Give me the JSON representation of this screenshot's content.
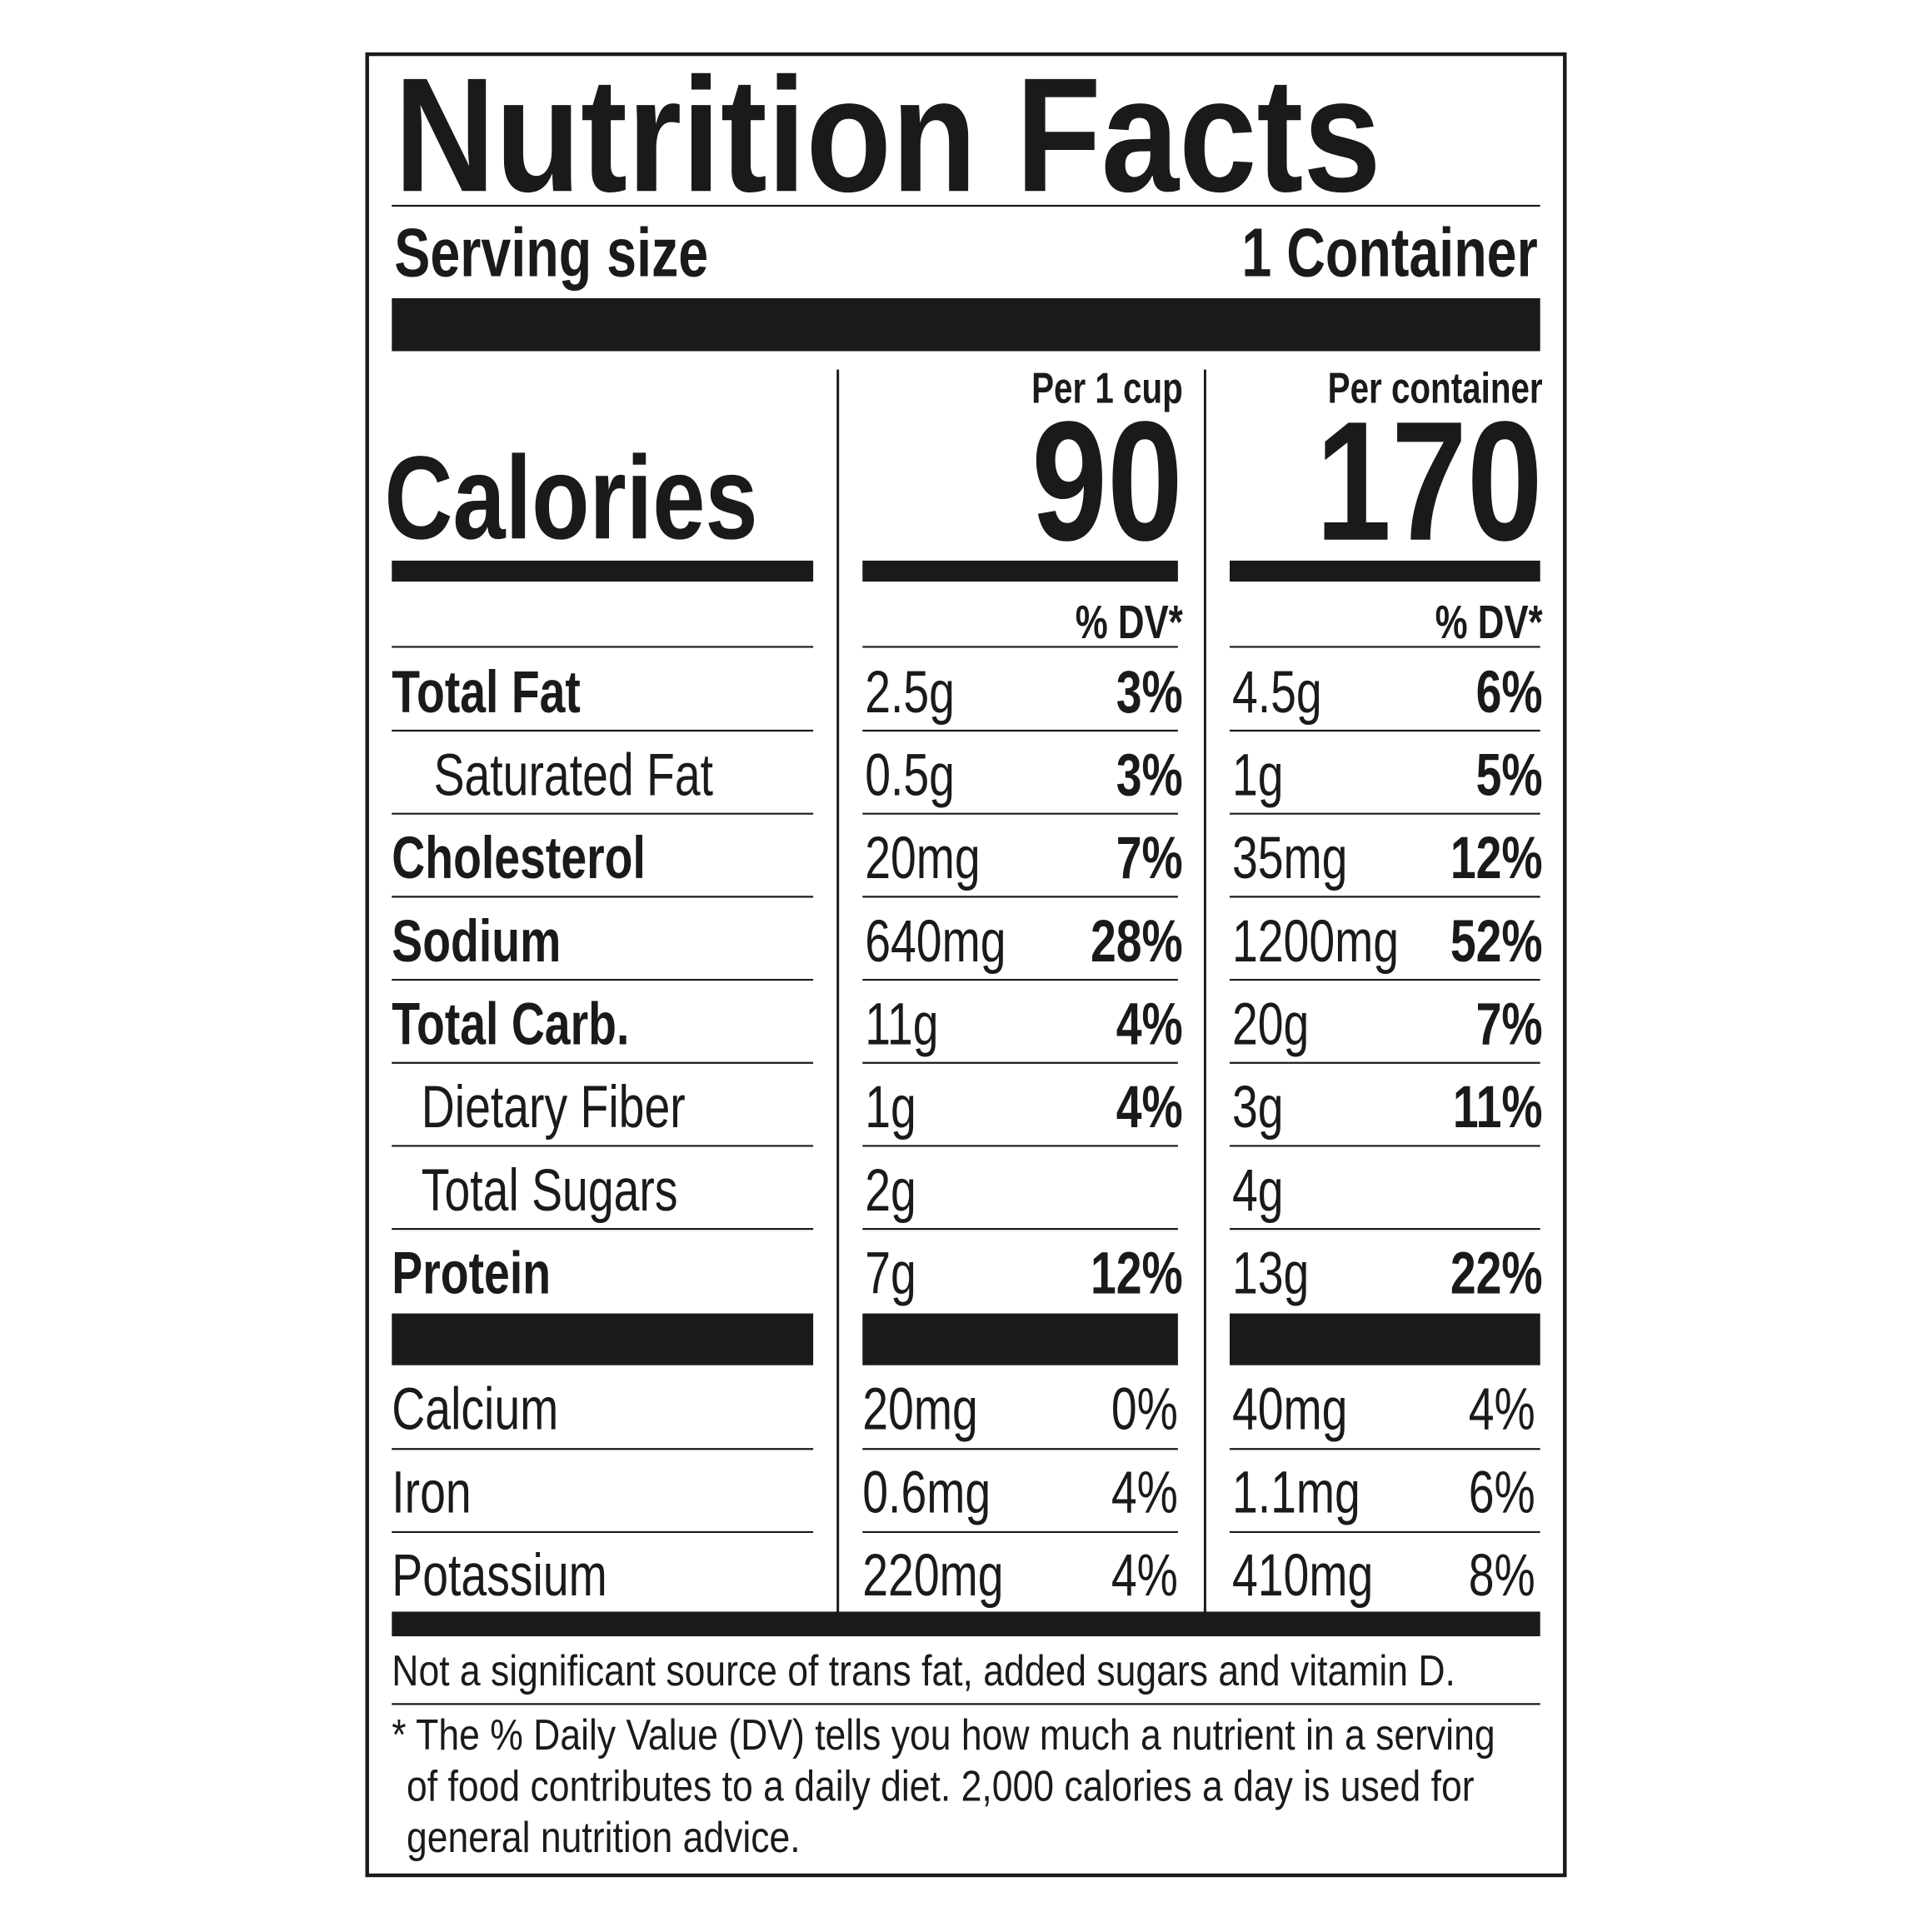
{
  "title": "Nutrition Facts",
  "serving": {
    "label": "Serving size",
    "value": "1 Container"
  },
  "calories": {
    "label": "Calories",
    "columns": [
      {
        "header": "Per 1 cup",
        "value": 90
      },
      {
        "header": "Per container",
        "value": 170
      }
    ]
  },
  "dv_header": [
    "% DV*",
    "% DV*"
  ],
  "nutrients": [
    {
      "name": "Total Fat",
      "bold": true,
      "indent": false,
      "per_cup": {
        "amount": "2.5g",
        "dv": "3%"
      },
      "per_container": {
        "amount": "4.5g",
        "dv": "6%"
      }
    },
    {
      "name": "Saturated Fat",
      "bold": false,
      "indent": true,
      "per_cup": {
        "amount": "0.5g",
        "dv": "3%"
      },
      "per_container": {
        "amount": "1g",
        "dv": "5%"
      }
    },
    {
      "name": "Cholesterol",
      "bold": true,
      "indent": false,
      "per_cup": {
        "amount": "20mg",
        "dv": "7%"
      },
      "per_container": {
        "amount": "35mg",
        "dv": "12%"
      }
    },
    {
      "name": "Sodium",
      "bold": true,
      "indent": false,
      "per_cup": {
        "amount": "640mg",
        "dv": "28%"
      },
      "per_container": {
        "amount": "1200mg",
        "dv": "52%"
      }
    },
    {
      "name": "Total Carb.",
      "bold": true,
      "indent": false,
      "per_cup": {
        "amount": "11g",
        "dv": "4%"
      },
      "per_container": {
        "amount": "20g",
        "dv": "7%"
      }
    },
    {
      "name": "Dietary Fiber",
      "bold": false,
      "indent": true,
      "per_cup": {
        "amount": "1g",
        "dv": "4%"
      },
      "per_container": {
        "amount": "3g",
        "dv": "11%"
      }
    },
    {
      "name": "Total Sugars",
      "bold": false,
      "indent": true,
      "per_cup": {
        "amount": "2g",
        "dv": null
      },
      "per_container": {
        "amount": "4g",
        "dv": null
      }
    },
    {
      "name": "Protein",
      "bold": true,
      "indent": false,
      "per_cup": {
        "amount": "7g",
        "dv": "12%"
      },
      "per_container": {
        "amount": "13g",
        "dv": "22%"
      }
    }
  ],
  "minerals": [
    {
      "name": "Calcium",
      "per_cup": {
        "amount": "20mg",
        "dv": "0%"
      },
      "per_container": {
        "amount": "40mg",
        "dv": "4%"
      }
    },
    {
      "name": "Iron",
      "per_cup": {
        "amount": "0.6mg",
        "dv": "4%"
      },
      "per_container": {
        "amount": "1.1mg",
        "dv": "6%"
      }
    },
    {
      "name": "Potassium",
      "per_cup": {
        "amount": "220mg",
        "dv": "4%"
      },
      "per_container": {
        "amount": "410mg",
        "dv": "8%"
      }
    }
  ],
  "footnotes": [
    [
      "Not a significant source of trans fat, added sugars and vitamin D."
    ],
    [
      "* The % Daily Value (DV) tells you how much a nutrient in a serving",
      "of food contributes to a daily diet. 2,000 calories a day is used for",
      "general nutrition advice."
    ]
  ]
}
